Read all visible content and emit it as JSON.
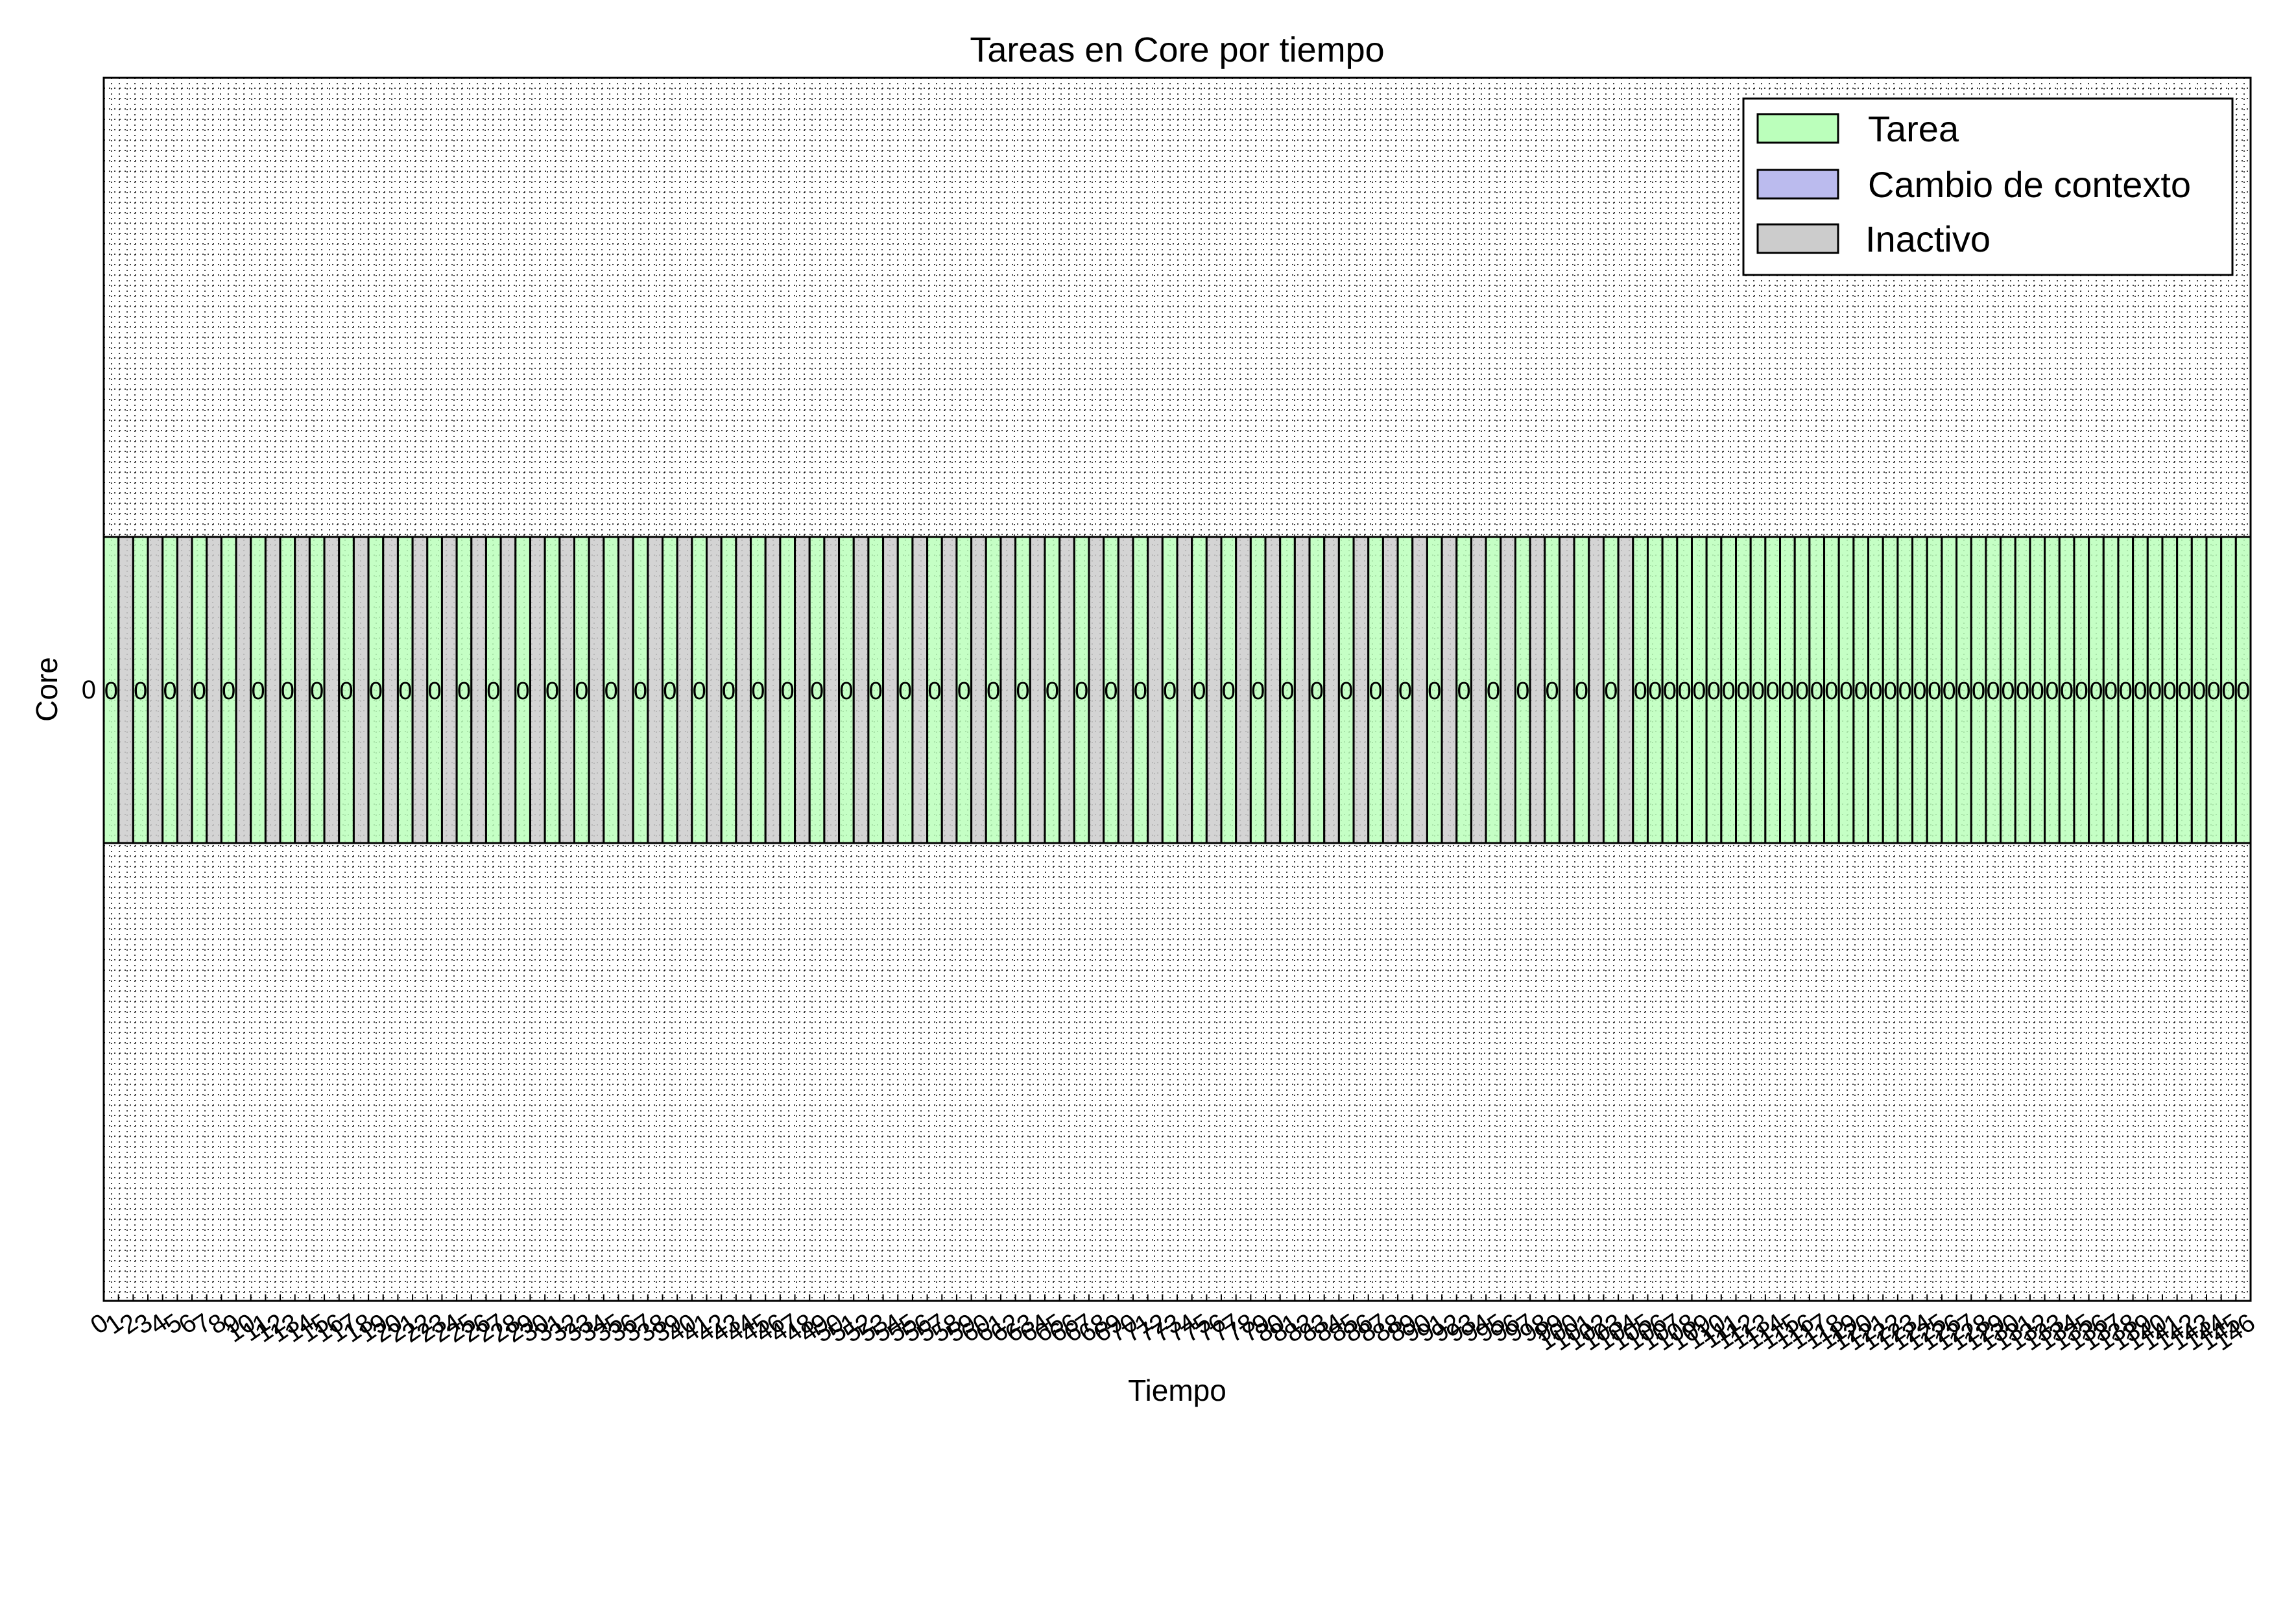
{
  "chart_data": {
    "type": "bar",
    "title": "Tareas en Core por tiempo",
    "xlabel": "Tiempo",
    "ylabel": "Core",
    "y_categories": [
      "0"
    ],
    "xlim": [
      0,
      146
    ],
    "grid": true,
    "grid_style": "dotted",
    "legend_placement": "top-right",
    "legend": [
      {
        "label": "Tarea",
        "color": "#bbffbb"
      },
      {
        "label": "Cambio de contexto",
        "color": "#bbbbee"
      },
      {
        "label": "Inactivo",
        "color": "#cccccc"
      }
    ],
    "segments": {
      "pattern_first": {
        "repeat": 52,
        "sequence": [
          {
            "state": "Tarea",
            "duration": 1,
            "label": "0"
          },
          {
            "state": "Inactivo",
            "duration": 1,
            "label": ""
          }
        ]
      },
      "pattern_second": {
        "repeat": 42,
        "sequence": [
          {
            "state": "Tarea",
            "duration": 1,
            "label": "0"
          }
        ]
      }
    }
  }
}
